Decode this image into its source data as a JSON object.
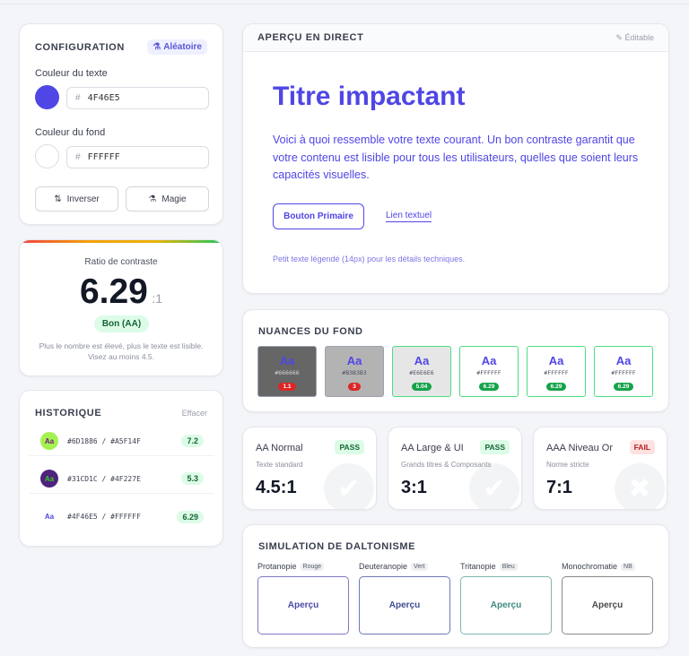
{
  "config": {
    "title": "CONFIGURATION",
    "random_label": "Aléatoire",
    "text_color_label": "Couleur du texte",
    "text_color_value": "4F46E5",
    "text_color_hex": "#4F46E5",
    "bg_color_label": "Couleur du fond",
    "bg_color_value": "FFFFFF",
    "bg_color_hex": "#FFFFFF",
    "hash": "#",
    "invert_label": "Inverser",
    "magic_label": "Magie"
  },
  "ratio": {
    "title": "Ratio de contraste",
    "value": "6.29",
    "suffix": ":1",
    "grade": "Bon (AA)",
    "note": "Plus le nombre est élevé, plus le texte est lisible. Visez au moins 4.5."
  },
  "history": {
    "title": "HISTORIQUE",
    "clear_label": "Effacer",
    "items": [
      {
        "avatar": "Aa",
        "codes": "#6D1886 / #A5F14F",
        "value": "7.2",
        "fg": "#6D1886",
        "bg": "#A5F14F"
      },
      {
        "avatar": "Aa",
        "codes": "#31CD1C / #4F227E",
        "value": "5.3",
        "fg": "#31CD1C",
        "bg": "#4F227E"
      },
      {
        "avatar": "Aa",
        "codes": "#4F46E5 / #FFFFFF",
        "value": "6.29",
        "fg": "#4F46E5",
        "bg": "#FFFFFF"
      }
    ]
  },
  "preview": {
    "title": "APERÇU EN DIRECT",
    "editable_label": "Éditable",
    "headline": "Titre impactant",
    "body": "Voici à quoi ressemble votre texte courant. Un bon contraste garantit que votre contenu est lisible pour tous les utilisateurs, quelles que soient leurs capacités visuelles.",
    "primary_button": "Bouton Primaire",
    "link": "Lien textuel",
    "caption": "Petit texte légendé (14px) pour les détails techniques."
  },
  "nuances": {
    "title": "NUANCES DU FOND",
    "items": [
      {
        "label": "Aa",
        "code": "#666666",
        "ratio": "1.1",
        "bg": "#666666",
        "status": "fail"
      },
      {
        "label": "Aa",
        "code": "#B3B3B3",
        "ratio": "3",
        "bg": "#B3B3B3",
        "status": "fail"
      },
      {
        "label": "Aa",
        "code": "#E6E6E6",
        "ratio": "5.04",
        "bg": "#E6E6E6",
        "status": "pass"
      },
      {
        "label": "Aa",
        "code": "#FFFFFF",
        "ratio": "6.29",
        "bg": "#FFFFFF",
        "status": "pass"
      },
      {
        "label": "Aa",
        "code": "#FFFFFF",
        "ratio": "6.29",
        "bg": "#FFFFFF",
        "status": "pass"
      },
      {
        "label": "Aa",
        "code": "#FFFFFF",
        "ratio": "6.29",
        "bg": "#FFFFFF",
        "status": "pass"
      }
    ]
  },
  "wcag": [
    {
      "name": "AA Normal",
      "status": "PASS",
      "desc": "Texte standard",
      "value": "4.5:1",
      "pass": true
    },
    {
      "name": "AA Large & UI",
      "status": "PASS",
      "desc": "Grands titres & Composants",
      "value": "3:1",
      "pass": true
    },
    {
      "name": "AAA Niveau Or",
      "status": "FAIL",
      "desc": "Norme stricte",
      "value": "7:1",
      "pass": false
    }
  ],
  "simulation": {
    "title": "SIMULATION DE DALTONISME",
    "items": [
      {
        "name": "Protanopie",
        "tag": "Rouge",
        "preview": "Aperçu",
        "color": "#4b4aa8",
        "border": "#7d79c9"
      },
      {
        "name": "Deuteranopie",
        "tag": "Vert",
        "preview": "Aperçu",
        "color": "#3f4d93",
        "border": "#6e78b8"
      },
      {
        "name": "Tritanopie",
        "tag": "Bleu",
        "preview": "Aperçu",
        "color": "#3f8a7f",
        "border": "#7fb6ae"
      },
      {
        "name": "Monochromatie",
        "tag": "NB",
        "preview": "Aperçu",
        "color": "#4a4a4a",
        "border": "#8a8a8a"
      }
    ]
  },
  "colors": {
    "accent": "#4F46E5",
    "pass_bg": "#dcfce7",
    "pass_fg": "#166534",
    "fail_bg": "#fee2e2",
    "fail_fg": "#b91c1c"
  }
}
